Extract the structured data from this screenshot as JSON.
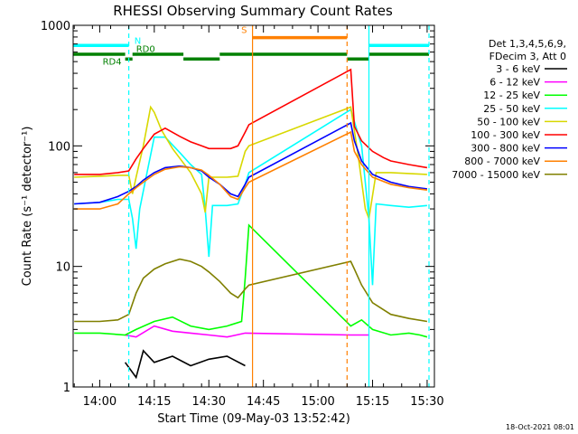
{
  "chart_data": {
    "type": "line",
    "title": "RHESSI Observing Summary Count Rates",
    "xlabel": "Start Time (09-May-03 13:52:42)",
    "ylabel": "Count Rate (s⁻¹ detector⁻¹)",
    "y_scale": "log",
    "ylim": [
      1,
      1000
    ],
    "x_axis_unit": "time of day",
    "xlim": [
      "13:52:42",
      "15:32:00"
    ],
    "x_ticks": [
      "14:00",
      "14:15",
      "14:30",
      "14:45",
      "15:00",
      "15:15",
      "15:30"
    ],
    "y_ticks": [
      "1",
      "10",
      "100",
      "1000"
    ],
    "legend_position": "top-right",
    "legend_header": [
      "Det 1,3,4,5,6,9,",
      "FDecim 3, Att 0"
    ],
    "series": [
      {
        "name": "3 - 6 keV",
        "color": "#000000",
        "points": [
          [
            "14:07",
            1.6
          ],
          [
            "14:10",
            1.2
          ],
          [
            "14:12",
            2.0
          ],
          [
            "14:15",
            1.6
          ],
          [
            "14:20",
            1.8
          ],
          [
            "14:25",
            1.5
          ],
          [
            "14:30",
            1.7
          ],
          [
            "14:35",
            1.8
          ],
          [
            "14:40",
            1.5
          ]
        ]
      },
      {
        "name": "6 - 12 keV",
        "color": "#ff00ff",
        "points": [
          [
            "14:07",
            2.7
          ],
          [
            "14:10",
            2.6
          ],
          [
            "14:15",
            3.2
          ],
          [
            "14:20",
            2.9
          ],
          [
            "14:25",
            2.8
          ],
          [
            "14:30",
            2.7
          ],
          [
            "14:35",
            2.6
          ],
          [
            "14:40",
            2.8
          ],
          [
            "15:09",
            2.7
          ],
          [
            "15:14",
            2.7
          ]
        ]
      },
      {
        "name": "12 - 25 keV",
        "color": "#00ff00",
        "points": [
          [
            "13:53",
            2.8
          ],
          [
            "14:00",
            2.8
          ],
          [
            "14:07",
            2.7
          ],
          [
            "14:10",
            3.0
          ],
          [
            "14:15",
            3.5
          ],
          [
            "14:20",
            3.8
          ],
          [
            "14:25",
            3.2
          ],
          [
            "14:30",
            3.0
          ],
          [
            "14:35",
            3.2
          ],
          [
            "14:39",
            3.5
          ],
          [
            "14:40",
            8.0
          ],
          [
            "14:41",
            22.0
          ],
          [
            "15:09",
            3.2
          ],
          [
            "15:12",
            3.6
          ],
          [
            "15:15",
            3.0
          ],
          [
            "15:20",
            2.7
          ],
          [
            "15:25",
            2.8
          ],
          [
            "15:28",
            2.7
          ],
          [
            "15:30",
            2.6
          ]
        ]
      },
      {
        "name": "25 - 50 keV",
        "color": "#00ffff",
        "points": [
          [
            "13:53",
            33
          ],
          [
            "14:00",
            34
          ],
          [
            "14:05",
            36
          ],
          [
            "14:08",
            36
          ],
          [
            "14:09",
            25
          ],
          [
            "14:10",
            14
          ],
          [
            "14:11",
            30
          ],
          [
            "14:13",
            60
          ],
          [
            "14:15",
            118
          ],
          [
            "14:18",
            118
          ],
          [
            "14:22",
            88
          ],
          [
            "14:25",
            70
          ],
          [
            "14:28",
            58
          ],
          [
            "14:29",
            30
          ],
          [
            "14:30",
            12
          ],
          [
            "14:31",
            32
          ],
          [
            "14:35",
            32
          ],
          [
            "14:38",
            33
          ],
          [
            "14:40",
            48
          ],
          [
            "14:41",
            60
          ],
          [
            "15:09",
            200
          ],
          [
            "15:12",
            100
          ],
          [
            "15:14",
            25
          ],
          [
            "15:15",
            7
          ],
          [
            "15:16",
            33
          ],
          [
            "15:20",
            32
          ],
          [
            "15:25",
            31
          ],
          [
            "15:30",
            32
          ]
        ]
      },
      {
        "name": "50 - 100 keV",
        "color": "#d8d800",
        "points": [
          [
            "13:53",
            55
          ],
          [
            "14:00",
            56
          ],
          [
            "14:05",
            57
          ],
          [
            "14:08",
            57
          ],
          [
            "14:09",
            40
          ],
          [
            "14:10",
            55
          ],
          [
            "14:12",
            100
          ],
          [
            "14:14",
            210
          ],
          [
            "14:15",
            190
          ],
          [
            "14:17",
            135
          ],
          [
            "14:20",
            95
          ],
          [
            "14:25",
            60
          ],
          [
            "14:28",
            40
          ],
          [
            "14:29",
            28
          ],
          [
            "14:30",
            55
          ],
          [
            "14:35",
            55
          ],
          [
            "14:38",
            56
          ],
          [
            "14:40",
            90
          ],
          [
            "14:41",
            100
          ],
          [
            "15:09",
            210
          ],
          [
            "15:11",
            85
          ],
          [
            "15:13",
            30
          ],
          [
            "15:14",
            25
          ],
          [
            "15:16",
            60
          ],
          [
            "15:20",
            60
          ],
          [
            "15:25",
            59
          ],
          [
            "15:30",
            58
          ]
        ]
      },
      {
        "name": "100 - 300 keV",
        "color": "#ff0000",
        "points": [
          [
            "13:53",
            58
          ],
          [
            "14:00",
            58
          ],
          [
            "14:05",
            60
          ],
          [
            "14:08",
            62
          ],
          [
            "14:10",
            78
          ],
          [
            "14:12",
            95
          ],
          [
            "14:15",
            125
          ],
          [
            "14:18",
            140
          ],
          [
            "14:22",
            120
          ],
          [
            "14:25",
            108
          ],
          [
            "14:28",
            100
          ],
          [
            "14:30",
            95
          ],
          [
            "14:33",
            95
          ],
          [
            "14:36",
            95
          ],
          [
            "14:38",
            100
          ],
          [
            "14:40",
            130
          ],
          [
            "14:41",
            150
          ],
          [
            "15:09",
            430
          ],
          [
            "15:10",
            145
          ],
          [
            "15:12",
            110
          ],
          [
            "15:15",
            90
          ],
          [
            "15:18",
            80
          ],
          [
            "15:20",
            75
          ],
          [
            "15:25",
            70
          ],
          [
            "15:30",
            66
          ]
        ]
      },
      {
        "name": "300 - 800 keV",
        "color": "#0000ff",
        "points": [
          [
            "13:53",
            33
          ],
          [
            "14:00",
            34
          ],
          [
            "14:05",
            38
          ],
          [
            "14:08",
            42
          ],
          [
            "14:10",
            46
          ],
          [
            "14:12",
            52
          ],
          [
            "14:15",
            60
          ],
          [
            "14:18",
            66
          ],
          [
            "14:22",
            68
          ],
          [
            "14:25",
            66
          ],
          [
            "14:28",
            62
          ],
          [
            "14:30",
            55
          ],
          [
            "14:33",
            48
          ],
          [
            "14:36",
            40
          ],
          [
            "14:38",
            38
          ],
          [
            "14:40",
            48
          ],
          [
            "14:41",
            55
          ],
          [
            "15:09",
            155
          ],
          [
            "15:10",
            110
          ],
          [
            "15:12",
            75
          ],
          [
            "15:15",
            58
          ],
          [
            "15:20",
            50
          ],
          [
            "15:25",
            46
          ],
          [
            "15:30",
            44
          ]
        ]
      },
      {
        "name": "800 - 7000 keV",
        "color": "#ff8000",
        "points": [
          [
            "13:53",
            30
          ],
          [
            "14:00",
            30
          ],
          [
            "14:05",
            33
          ],
          [
            "14:08",
            40
          ],
          [
            "14:10",
            45
          ],
          [
            "14:12",
            50
          ],
          [
            "14:15",
            58
          ],
          [
            "14:18",
            64
          ],
          [
            "14:22",
            67
          ],
          [
            "14:25",
            66
          ],
          [
            "14:28",
            63
          ],
          [
            "14:30",
            57
          ],
          [
            "14:33",
            48
          ],
          [
            "14:36",
            38
          ],
          [
            "14:38",
            36
          ],
          [
            "14:40",
            45
          ],
          [
            "14:41",
            50
          ],
          [
            "15:09",
            130
          ],
          [
            "15:10",
            90
          ],
          [
            "15:12",
            70
          ],
          [
            "15:15",
            55
          ],
          [
            "15:20",
            48
          ],
          [
            "15:25",
            45
          ],
          [
            "15:30",
            43
          ]
        ]
      },
      {
        "name": "7000 - 15000 keV",
        "color": "#808000",
        "points": [
          [
            "13:53",
            3.5
          ],
          [
            "14:00",
            3.5
          ],
          [
            "14:05",
            3.6
          ],
          [
            "14:08",
            4.0
          ],
          [
            "14:10",
            6.0
          ],
          [
            "14:12",
            8.0
          ],
          [
            "14:15",
            9.5
          ],
          [
            "14:18",
            10.5
          ],
          [
            "14:22",
            11.5
          ],
          [
            "14:25",
            11.0
          ],
          [
            "14:28",
            10.0
          ],
          [
            "14:30",
            9.0
          ],
          [
            "14:33",
            7.5
          ],
          [
            "14:36",
            6.0
          ],
          [
            "14:38",
            5.5
          ],
          [
            "14:40",
            6.5
          ],
          [
            "14:41",
            7.0
          ],
          [
            "15:09",
            11.0
          ],
          [
            "15:10",
            9.5
          ],
          [
            "15:12",
            7.0
          ],
          [
            "15:15",
            5.0
          ],
          [
            "15:20",
            4.0
          ],
          [
            "15:25",
            3.7
          ],
          [
            "15:30",
            3.5
          ]
        ]
      }
    ],
    "state_bars": [
      {
        "label": "N",
        "color": "#00ffff",
        "level": 680,
        "segments": [
          [
            "13:52:42",
            "14:08"
          ],
          [
            "15:14",
            "15:30:30"
          ]
        ]
      },
      {
        "label": "RD0",
        "color": "#008000",
        "level": 575,
        "segments": [
          [
            "13:52:42",
            "14:07"
          ],
          [
            "14:09",
            "14:23"
          ],
          [
            "14:33",
            "15:08"
          ],
          [
            "15:14",
            "15:30:30"
          ]
        ]
      },
      {
        "label": "RD4",
        "color": "#008000",
        "level": 525,
        "segments": [
          [
            "14:07",
            "14:09"
          ],
          [
            "14:23",
            "14:33"
          ],
          [
            "15:08",
            "15:14"
          ]
        ]
      },
      {
        "label": "S",
        "color": "#ff8000",
        "level": 790,
        "segments": [
          [
            "14:42",
            "15:08"
          ]
        ]
      }
    ],
    "vertical_lines": [
      {
        "time": "14:08",
        "color": "#00ffff",
        "style": "dashed"
      },
      {
        "time": "14:42",
        "color": "#ff8000",
        "style": "solid"
      },
      {
        "time": "15:08",
        "color": "#ff8000",
        "style": "dashed"
      },
      {
        "time": "15:14",
        "color": "#00ffff",
        "style": "solid"
      },
      {
        "time": "15:30:30",
        "color": "#00ffff",
        "style": "dashed"
      }
    ]
  },
  "footer": {
    "date_stamp": "18-Oct-2021 08:01"
  }
}
